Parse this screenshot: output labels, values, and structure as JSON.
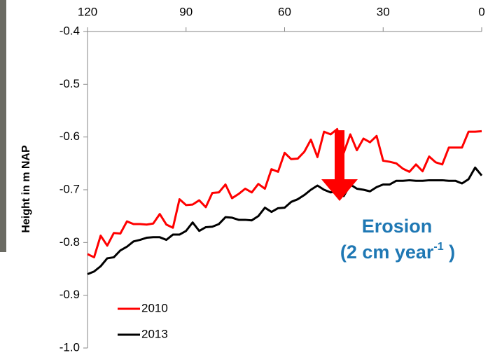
{
  "chart_data": {
    "type": "line",
    "y_label": "Height in  m NAP",
    "x": [
      120,
      118,
      116,
      114,
      112,
      110,
      108,
      106,
      104,
      102,
      100,
      98,
      96,
      94,
      92,
      90,
      88,
      86,
      84,
      82,
      80,
      78,
      76,
      74,
      72,
      70,
      68,
      66,
      64,
      62,
      60,
      58,
      56,
      54,
      52,
      50,
      48,
      46,
      44,
      42,
      40,
      38,
      36,
      34,
      32,
      30,
      28,
      26,
      24,
      22,
      20,
      18,
      16,
      14,
      12,
      10,
      8,
      6,
      4,
      2,
      0
    ],
    "series": [
      {
        "name": "2010",
        "color": "#ff0000",
        "values": [
          -0.822,
          -0.828,
          -0.787,
          -0.806,
          -0.782,
          -0.783,
          -0.76,
          -0.765,
          -0.765,
          -0.766,
          -0.764,
          -0.746,
          -0.766,
          -0.772,
          -0.718,
          -0.729,
          -0.728,
          -0.72,
          -0.733,
          -0.706,
          -0.705,
          -0.69,
          -0.716,
          -0.708,
          -0.698,
          -0.705,
          -0.689,
          -0.698,
          -0.661,
          -0.666,
          -0.63,
          -0.642,
          -0.641,
          -0.628,
          -0.605,
          -0.638,
          -0.59,
          -0.595,
          -0.585,
          -0.63,
          -0.595,
          -0.625,
          -0.603,
          -0.61,
          -0.598,
          -0.645,
          -0.647,
          -0.65,
          -0.66,
          -0.666,
          -0.652,
          -0.665,
          -0.637,
          -0.648,
          -0.652,
          -0.62,
          -0.62,
          -0.62,
          -0.59,
          -0.59,
          -0.589
        ]
      },
      {
        "name": "2013",
        "color": "#000000",
        "values": [
          -0.86,
          -0.855,
          -0.845,
          -0.83,
          -0.828,
          -0.815,
          -0.808,
          -0.798,
          -0.795,
          -0.791,
          -0.79,
          -0.79,
          -0.795,
          -0.785,
          -0.785,
          -0.778,
          -0.762,
          -0.778,
          -0.771,
          -0.77,
          -0.765,
          -0.752,
          -0.753,
          -0.757,
          -0.757,
          -0.758,
          -0.75,
          -0.734,
          -0.742,
          -0.735,
          -0.734,
          -0.723,
          -0.718,
          -0.71,
          -0.7,
          -0.692,
          -0.7,
          -0.705,
          -0.703,
          -0.712,
          -0.69,
          -0.698,
          -0.7,
          -0.703,
          -0.695,
          -0.69,
          -0.69,
          -0.683,
          -0.683,
          -0.682,
          -0.683,
          -0.683,
          -0.682,
          -0.682,
          -0.682,
          -0.683,
          -0.683,
          -0.688,
          -0.68,
          -0.658,
          -0.673
        ]
      }
    ],
    "xlim": [
      120,
      0
    ],
    "xticks": [
      120,
      90,
      60,
      30,
      0
    ],
    "ylim": [
      -1,
      -0.4
    ],
    "yticks": [
      -0.4,
      -0.5,
      -0.6,
      -0.7,
      -0.8,
      -0.9,
      {
        "value": -1,
        "label": "-1.0"
      }
    ],
    "grid": false,
    "legend": "lower left",
    "annotation": {
      "line1": "Erosion",
      "line2": "(2 cm year",
      "superscript": "-1",
      "line2_end": " )"
    }
  }
}
